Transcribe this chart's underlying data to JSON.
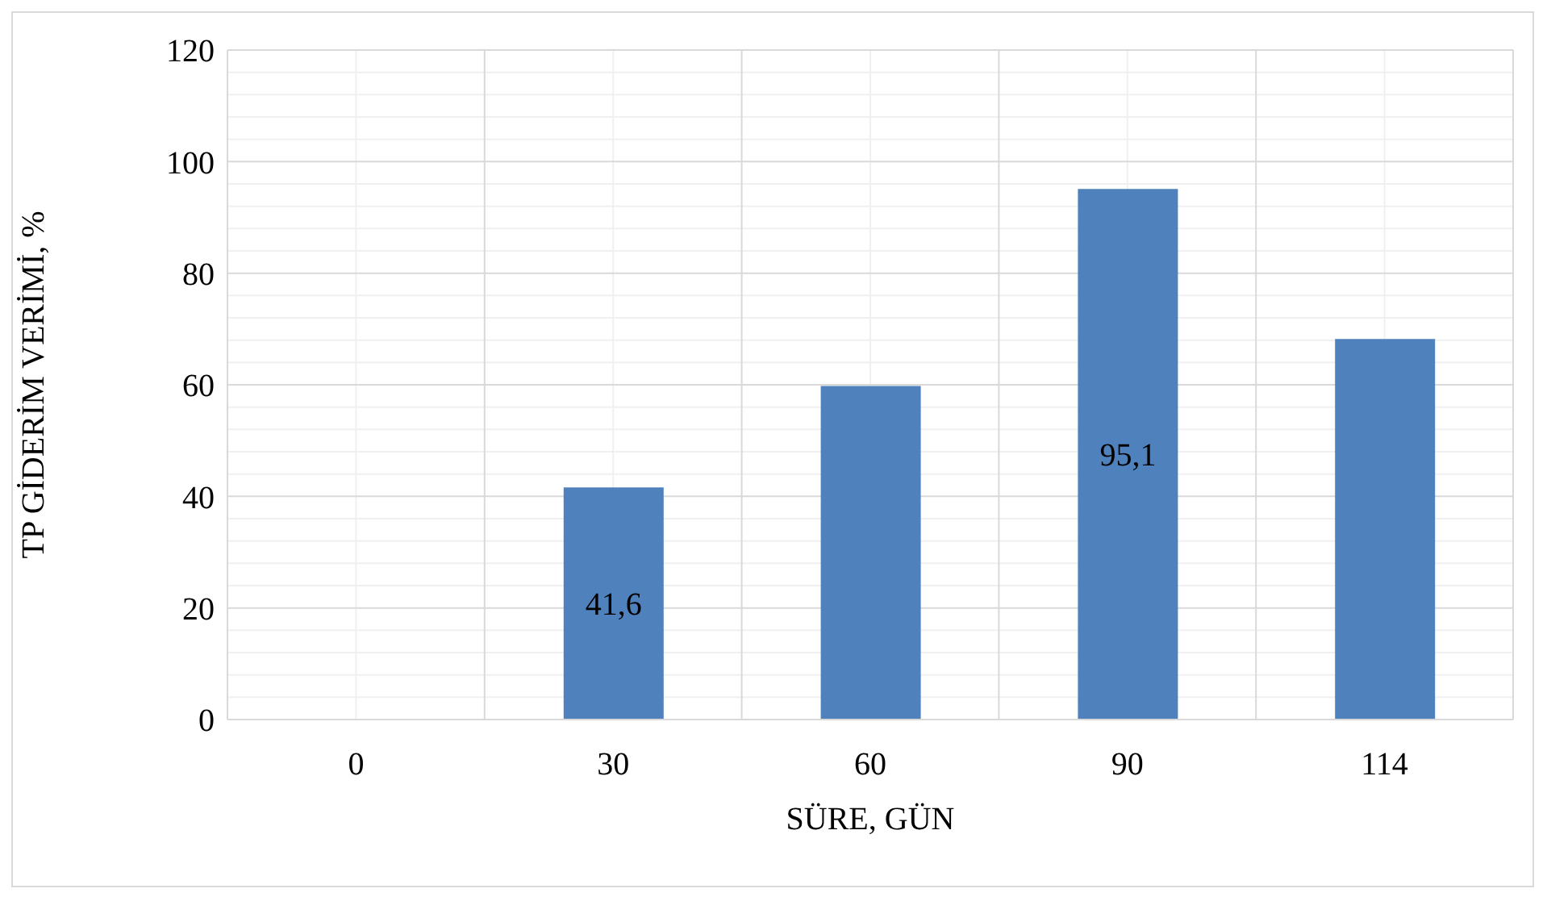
{
  "chart_data": {
    "type": "bar",
    "xlabel": "SÜRE, GÜN",
    "ylabel": "TP GİDERİM VERİMİ, %",
    "categories": [
      "0",
      "30",
      "60",
      "90",
      "114"
    ],
    "values": [
      0,
      41.6,
      59.8,
      95.1,
      68.2
    ],
    "value_labels": [
      null,
      "41,6",
      null,
      "95,1",
      null
    ],
    "color": "#4f81bd",
    "ylim": [
      0,
      120
    ],
    "yticks": [
      0,
      {
        "value": 4,
        "label": null
      },
      {
        "value": 8,
        "label": null
      },
      {
        "value": 12,
        "label": null
      },
      {
        "value": 16,
        "label": null
      },
      20,
      {
        "value": 24,
        "label": null
      },
      {
        "value": 28,
        "label": null
      },
      {
        "value": 32,
        "label": null
      },
      {
        "value": 36,
        "label": null
      },
      40,
      {
        "value": 44,
        "label": null
      },
      {
        "value": 48,
        "label": null
      },
      {
        "value": 52,
        "label": null
      },
      {
        "value": 56,
        "label": null
      },
      60,
      {
        "value": 64,
        "label": null
      },
      {
        "value": 68,
        "label": null
      },
      {
        "value": 72,
        "label": null
      },
      {
        "value": 76,
        "label": null
      },
      80,
      {
        "value": 84,
        "label": null
      },
      {
        "value": 88,
        "label": null
      },
      {
        "value": 92,
        "label": null
      },
      {
        "value": 96,
        "label": null
      },
      100,
      {
        "value": 104,
        "label": null
      },
      {
        "value": 108,
        "label": null
      },
      {
        "value": 112,
        "label": null
      },
      {
        "value": 116,
        "label": null
      },
      120
    ],
    "grid": true
  }
}
